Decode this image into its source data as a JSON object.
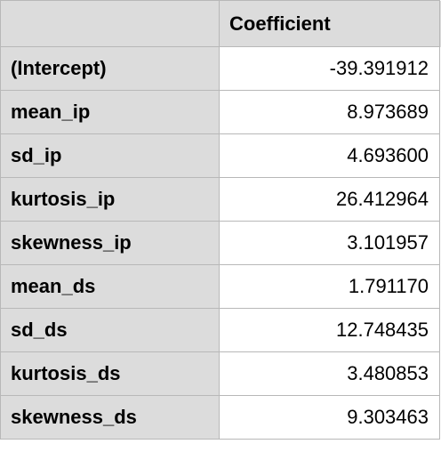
{
  "table": {
    "header": {
      "corner": "",
      "column": "Coefficient"
    },
    "rows": [
      {
        "label": "(Intercept)",
        "value": "-39.391912"
      },
      {
        "label": "mean_ip",
        "value": "8.973689"
      },
      {
        "label": "sd_ip",
        "value": "4.693600"
      },
      {
        "label": "kurtosis_ip",
        "value": "26.412964"
      },
      {
        "label": "skewness_ip",
        "value": "3.101957"
      },
      {
        "label": "mean_ds",
        "value": "1.791170"
      },
      {
        "label": "sd_ds",
        "value": "12.748435"
      },
      {
        "label": "kurtosis_ds",
        "value": "3.480853"
      },
      {
        "label": "skewness_ds",
        "value": "9.303463"
      }
    ]
  },
  "colors": {
    "header_bg": "#dcdcdc",
    "cell_bg": "#ffffff",
    "grid_line": "#b8b8b8",
    "text": "#000000"
  }
}
